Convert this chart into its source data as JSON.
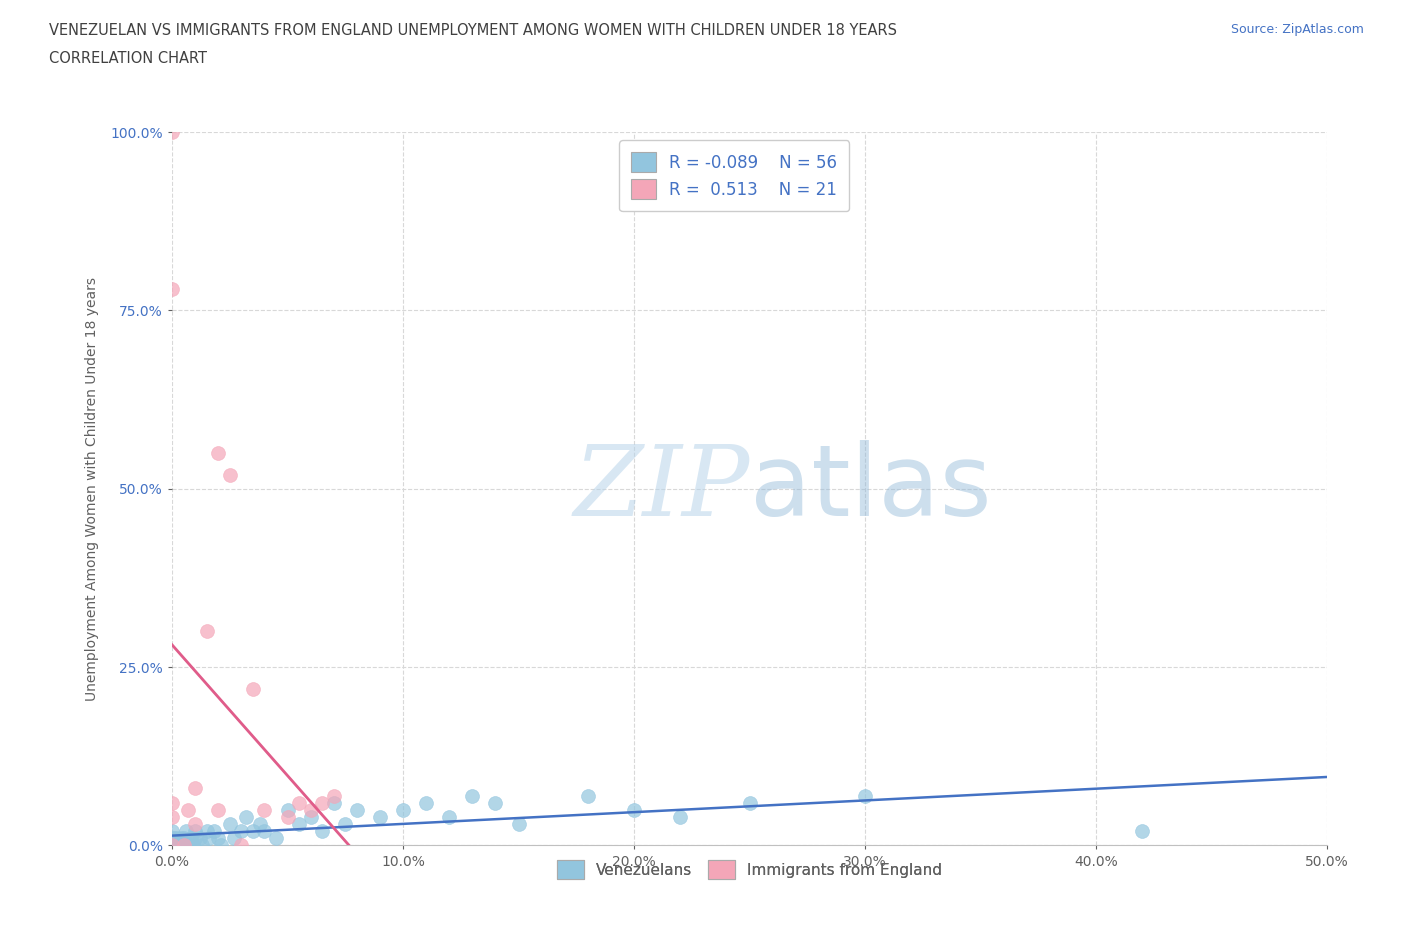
{
  "title_line1": "VENEZUELAN VS IMMIGRANTS FROM ENGLAND UNEMPLOYMENT AMONG WOMEN WITH CHILDREN UNDER 18 YEARS",
  "title_line2": "CORRELATION CHART",
  "source": "Source: ZipAtlas.com",
  "ylabel": "Unemployment Among Women with Children Under 18 years",
  "xlim": [
    0.0,
    0.5
  ],
  "ylim": [
    0.0,
    1.0
  ],
  "xticks": [
    0.0,
    0.1,
    0.2,
    0.3,
    0.4,
    0.5
  ],
  "xtick_labels": [
    "0.0%",
    "10.0%",
    "20.0%",
    "30.0%",
    "40.0%",
    "50.0%"
  ],
  "yticks": [
    0.0,
    0.25,
    0.5,
    0.75,
    1.0
  ],
  "ytick_labels": [
    "0.0%",
    "25.0%",
    "50.0%",
    "75.0%",
    "100.0%"
  ],
  "venezuelan_color": "#92c5de",
  "england_color": "#f4a6b8",
  "venezuelan_line_color": "#4472c4",
  "england_line_color": "#e05c8a",
  "r_venezuelan": -0.089,
  "n_venezuelan": 56,
  "r_england": 0.513,
  "n_england": 21,
  "legend_label_1": "Venezuelans",
  "legend_label_2": "Immigrants from England",
  "watermark_zip": "ZIP",
  "watermark_atlas": "atlas",
  "background_color": "#ffffff",
  "grid_color": "#d8d8d8",
  "title_color": "#404040",
  "axis_color": "#606060",
  "ytick_color": "#4472c4",
  "venezuelan_x": [
    0.0,
    0.0,
    0.0,
    0.0,
    0.0,
    0.0,
    0.0,
    0.001,
    0.001,
    0.002,
    0.002,
    0.003,
    0.004,
    0.005,
    0.005,
    0.006,
    0.007,
    0.008,
    0.009,
    0.01,
    0.01,
    0.012,
    0.013,
    0.015,
    0.016,
    0.018,
    0.02,
    0.021,
    0.025,
    0.027,
    0.03,
    0.032,
    0.035,
    0.038,
    0.04,
    0.045,
    0.05,
    0.055,
    0.06,
    0.065,
    0.07,
    0.075,
    0.08,
    0.09,
    0.1,
    0.11,
    0.12,
    0.13,
    0.14,
    0.15,
    0.18,
    0.2,
    0.22,
    0.25,
    0.3,
    0.42
  ],
  "venezuelan_y": [
    0.0,
    0.0,
    0.0,
    0.0,
    0.0,
    0.01,
    0.02,
    0.0,
    0.01,
    0.0,
    0.01,
    0.0,
    0.01,
    0.0,
    0.01,
    0.02,
    0.0,
    0.01,
    0.0,
    0.01,
    0.02,
    0.01,
    0.0,
    0.02,
    0.01,
    0.02,
    0.01,
    0.0,
    0.03,
    0.01,
    0.02,
    0.04,
    0.02,
    0.03,
    0.02,
    0.01,
    0.05,
    0.03,
    0.04,
    0.02,
    0.06,
    0.03,
    0.05,
    0.04,
    0.05,
    0.06,
    0.04,
    0.07,
    0.06,
    0.03,
    0.07,
    0.05,
    0.04,
    0.06,
    0.07,
    0.02
  ],
  "england_x": [
    0.0,
    0.0,
    0.0,
    0.0,
    0.0,
    0.005,
    0.007,
    0.01,
    0.01,
    0.015,
    0.02,
    0.02,
    0.025,
    0.03,
    0.035,
    0.04,
    0.05,
    0.055,
    0.06,
    0.065,
    0.07
  ],
  "england_y": [
    0.0,
    0.04,
    0.06,
    0.78,
    1.0,
    0.0,
    0.05,
    0.03,
    0.08,
    0.3,
    0.05,
    0.55,
    0.52,
    0.0,
    0.22,
    0.05,
    0.04,
    0.06,
    0.05,
    0.06,
    0.07
  ]
}
